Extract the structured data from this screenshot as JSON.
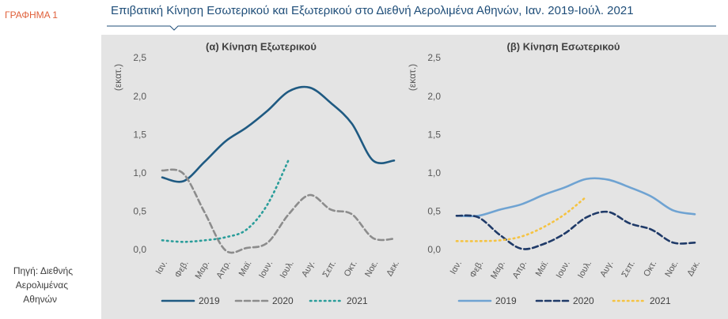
{
  "label": "ΓΡΑΦΗΜΑ 1",
  "title": "Επιβατική Κίνηση Εσωτερικού και Εξωτερικού στο Διεθνή Αερολιμένα Αθηνών, Ιαν. 2019-Ιούλ. 2021",
  "source": [
    "Πηγή: Διεθνής",
    "Αερολιμένας",
    "Αθηνών"
  ],
  "chart_data": [
    {
      "type": "line",
      "title": "(α) Κίνηση  Εξωτερικού",
      "y_label": "(εκατ.)",
      "categories": [
        "Ιαν.",
        "Φεβ.",
        "Μαρ.",
        "Απρ.",
        "Μαϊ.",
        "Ιουν.",
        "Ιουλ.",
        "Αυγ.",
        "Σεπ.",
        "Οκτ.",
        "Νοε.",
        "Δεκ."
      ],
      "ylim": [
        0,
        2.5
      ],
      "yticks": [
        {
          "value": 0,
          "label": "0,0"
        },
        {
          "value": 0.5,
          "label": "0,5"
        },
        {
          "value": 1,
          "label": "1,0"
        },
        {
          "value": 1.5,
          "label": "1,5"
        },
        {
          "value": 2,
          "label": "2,0"
        },
        {
          "value": 2.5,
          "label": "2,5"
        }
      ],
      "grid": false,
      "series": [
        {
          "name": "2019",
          "color": "#1f5a82",
          "dash": "solid",
          "values": [
            0.95,
            0.9,
            1.15,
            1.42,
            1.6,
            1.82,
            2.07,
            2.12,
            1.92,
            1.65,
            1.17,
            1.17
          ]
        },
        {
          "name": "2020",
          "color": "#8c8c8c",
          "dash": "dashed",
          "values": [
            1.04,
            1.0,
            0.5,
            0.0,
            0.03,
            0.1,
            0.47,
            0.72,
            0.53,
            0.47,
            0.16,
            0.15
          ]
        },
        {
          "name": "2021",
          "color": "#2a9d9a",
          "dash": "dotted",
          "values": [
            0.13,
            0.11,
            0.13,
            0.17,
            0.27,
            0.6,
            1.18,
            null,
            null,
            null,
            null,
            null
          ]
        }
      ]
    },
    {
      "type": "line",
      "title": "(β) Κίνηση  Εσωτερικού",
      "y_label": "(εκατ.)",
      "categories": [
        "Ιαν.",
        "Φεβ.",
        "Μαρ.",
        "Απρ.",
        "Μαϊ.",
        "Ιουν.",
        "Ιουλ.",
        "Αυγ.",
        "Σεπ.",
        "Οκτ.",
        "Νοε.",
        "Δεκ."
      ],
      "ylim": [
        0,
        2.5
      ],
      "yticks": [
        {
          "value": 0,
          "label": "0,0"
        },
        {
          "value": 0.5,
          "label": "0,5"
        },
        {
          "value": 1,
          "label": "1,0"
        },
        {
          "value": 1.5,
          "label": "1,5"
        },
        {
          "value": 2,
          "label": "2,0"
        },
        {
          "value": 2.5,
          "label": "2,5"
        }
      ],
      "grid": false,
      "series": [
        {
          "name": "2019",
          "color": "#6fa3d2",
          "dash": "solid",
          "values": [
            0.45,
            0.45,
            0.53,
            0.6,
            0.72,
            0.82,
            0.93,
            0.92,
            0.82,
            0.7,
            0.52,
            0.47
          ]
        },
        {
          "name": "2020",
          "color": "#1f3a68",
          "dash": "dashed",
          "values": [
            0.45,
            0.43,
            0.2,
            0.02,
            0.08,
            0.22,
            0.43,
            0.5,
            0.35,
            0.27,
            0.1,
            0.1
          ]
        },
        {
          "name": "2021",
          "color": "#f5c342",
          "dash": "dotted",
          "values": [
            0.12,
            0.12,
            0.13,
            0.18,
            0.3,
            0.47,
            0.7,
            null,
            null,
            null,
            null,
            null
          ]
        }
      ]
    }
  ]
}
